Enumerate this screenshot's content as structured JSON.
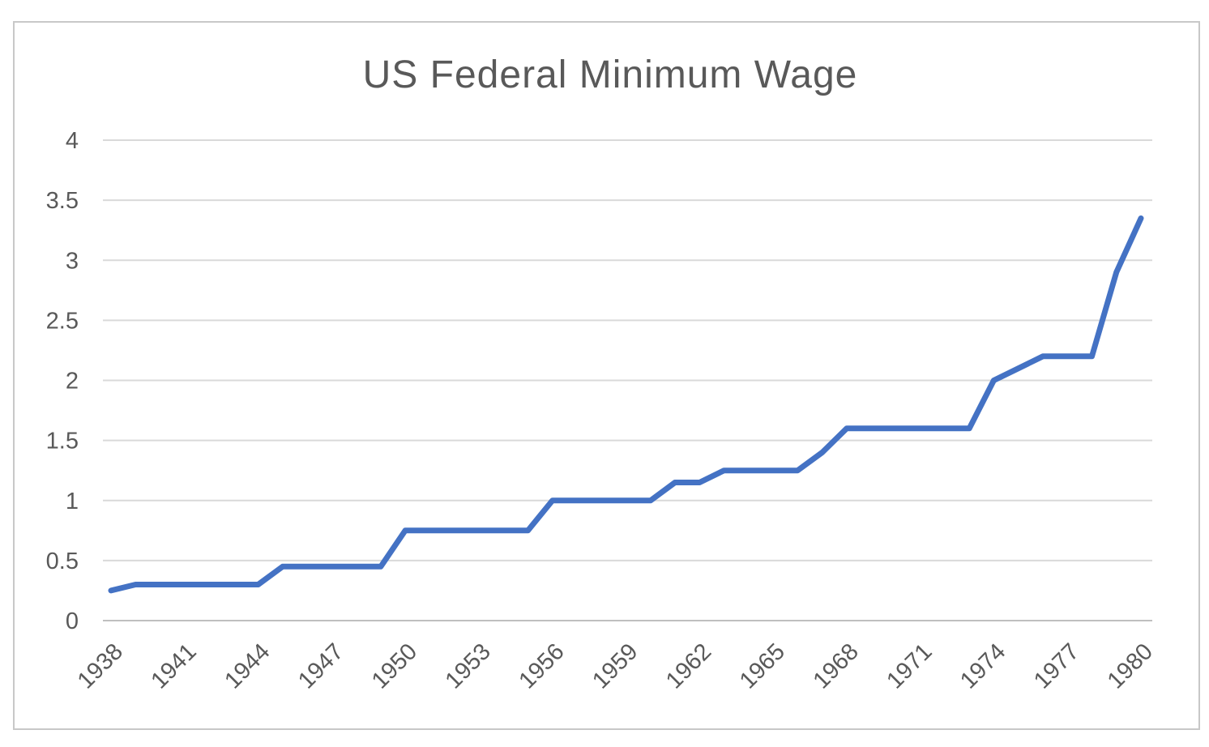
{
  "chart_data": {
    "type": "line",
    "title": "US Federal Minimum Wage",
    "x": [
      1938,
      1939,
      1940,
      1941,
      1942,
      1943,
      1944,
      1945,
      1946,
      1947,
      1948,
      1949,
      1950,
      1951,
      1952,
      1953,
      1954,
      1955,
      1956,
      1957,
      1958,
      1959,
      1960,
      1961,
      1962,
      1963,
      1964,
      1965,
      1966,
      1967,
      1968,
      1969,
      1970,
      1971,
      1972,
      1973,
      1974,
      1975,
      1976,
      1977,
      1978,
      1979,
      1980
    ],
    "series": [
      {
        "name": "Minimum wage (USD per hour)",
        "values": [
          0.25,
          0.3,
          0.3,
          0.3,
          0.3,
          0.3,
          0.3,
          0.45,
          0.45,
          0.45,
          0.45,
          0.45,
          0.75,
          0.75,
          0.75,
          0.75,
          0.75,
          0.75,
          1.0,
          1.0,
          1.0,
          1.0,
          1.0,
          1.15,
          1.15,
          1.25,
          1.25,
          1.25,
          1.25,
          1.4,
          1.6,
          1.6,
          1.6,
          1.6,
          1.6,
          1.6,
          2.0,
          2.1,
          2.2,
          2.2,
          2.2,
          2.9,
          3.35
        ]
      }
    ],
    "xlabel": "",
    "ylabel": "",
    "ylim": [
      0,
      4
    ],
    "yticks": [
      0,
      0.5,
      1,
      1.5,
      2,
      2.5,
      3,
      3.5,
      4
    ],
    "ytick_labels": [
      "0",
      "0.5",
      "1",
      "1.5",
      "2",
      "2.5",
      "3",
      "3.5",
      "4"
    ],
    "xtick_labels": [
      "1938",
      "1941",
      "1944",
      "1947",
      "1950",
      "1953",
      "1956",
      "1959",
      "1962",
      "1965",
      "1968",
      "1971",
      "1974",
      "1977",
      "1980"
    ],
    "grid": "horizontal",
    "legend": "none",
    "colors": {
      "line": "#4472C4",
      "gridline": "#D9D9D9",
      "axis_line": "#BFBFBF",
      "text": "#595959",
      "frame_border": "#C8C8C8",
      "background": "#FFFFFF"
    }
  }
}
